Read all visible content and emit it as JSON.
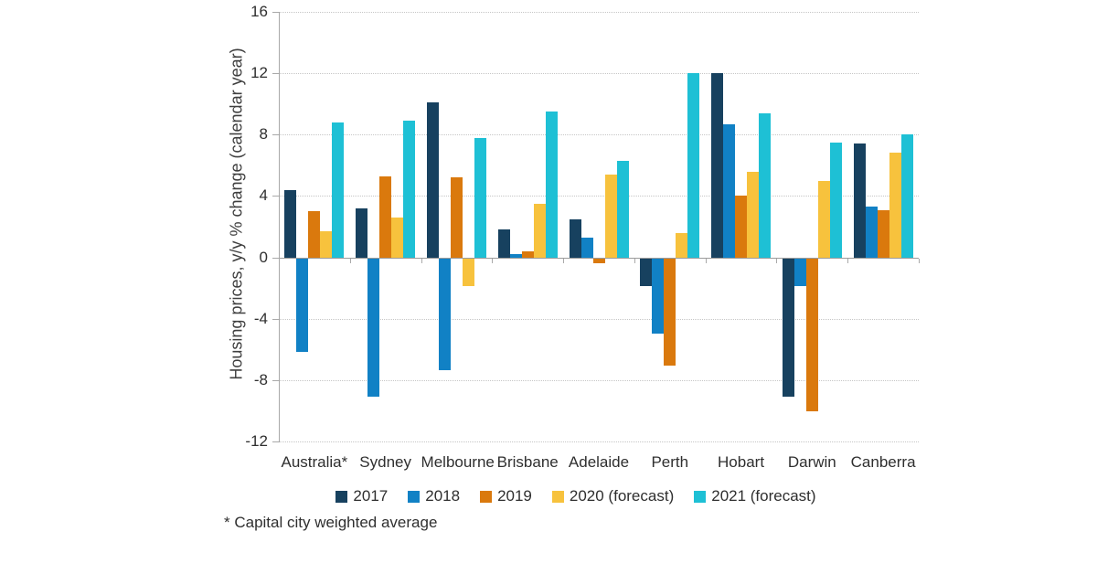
{
  "chart_data": {
    "type": "bar",
    "title": "",
    "xlabel": "",
    "ylabel": "Housing prices, y/y % change (calendar year)",
    "ylim": [
      -12,
      16
    ],
    "yticks": [
      16,
      12,
      8,
      4,
      0,
      -4,
      -8,
      -12
    ],
    "grid": "horizontal-dotted",
    "legend_position": "bottom-center",
    "footnote": "* Capital city weighted average",
    "categories": [
      "Australia*",
      "Sydney",
      "Melbourne",
      "Brisbane",
      "Adelaide",
      "Perth",
      "Hobart",
      "Darwin",
      "Canberra"
    ],
    "series": [
      {
        "name": "2017",
        "color": "#17415f",
        "values": [
          4.4,
          3.2,
          10.1,
          1.8,
          2.5,
          -1.8,
          12.0,
          -9.0,
          7.4
        ]
      },
      {
        "name": "2018",
        "color": "#1181c5",
        "values": [
          -6.1,
          -9.0,
          -7.3,
          0.2,
          1.3,
          -4.9,
          8.7,
          -1.8,
          3.3
        ]
      },
      {
        "name": "2019",
        "color": "#da790d",
        "values": [
          3.0,
          5.3,
          5.2,
          0.4,
          -0.3,
          -7.0,
          4.0,
          -10.0,
          3.1
        ]
      },
      {
        "name": "2020 (forecast)",
        "color": "#f7c23d",
        "values": [
          1.7,
          2.6,
          -1.8,
          3.5,
          5.4,
          1.6,
          5.6,
          5.0,
          6.8
        ]
      },
      {
        "name": "2021 (forecast)",
        "color": "#1ec0d5",
        "values": [
          8.8,
          8.9,
          7.8,
          9.5,
          6.3,
          12.0,
          9.4,
          7.5,
          8.0
        ]
      }
    ],
    "axis_colors": {
      "gridline": "#c6c6c6",
      "axis_line": "#a9a9a9",
      "zero_line": "#9b9b9b",
      "text": "#2f2f2f"
    }
  }
}
